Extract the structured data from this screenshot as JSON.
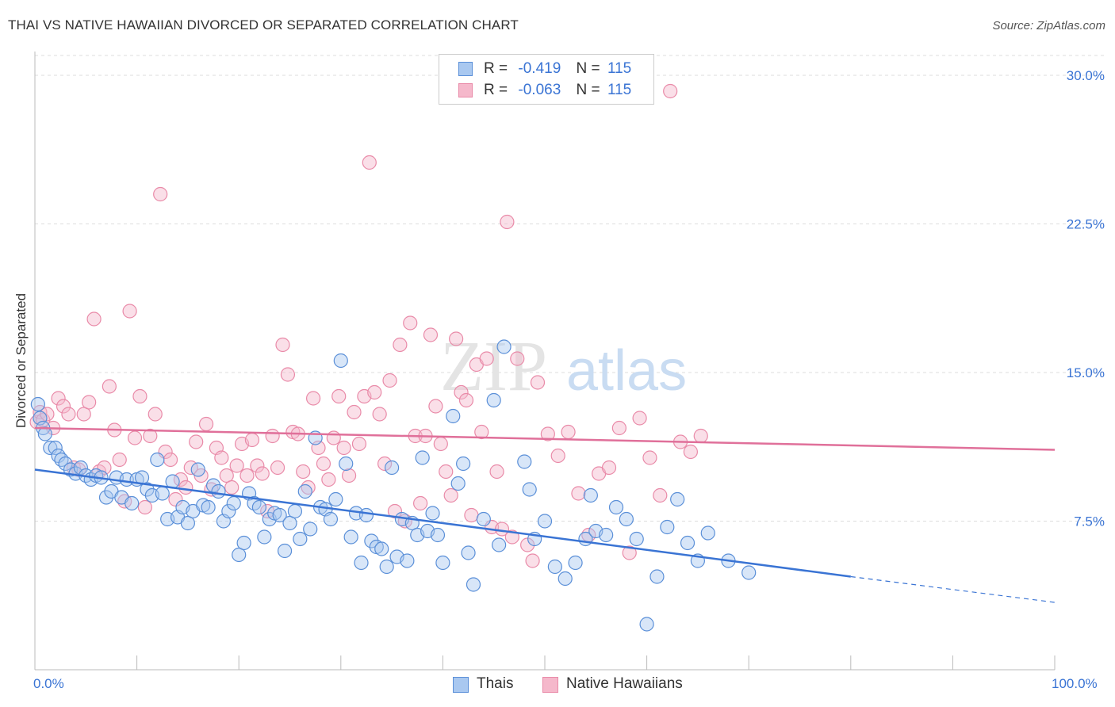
{
  "header": {
    "title": "THAI VS NATIVE HAWAIIAN DIVORCED OR SEPARATED CORRELATION CHART",
    "source": "Source: ZipAtlas.com"
  },
  "legend": {
    "rows": [
      {
        "r_label": "R =",
        "r_value": "-0.419",
        "n_label": "N =",
        "n_value": "115"
      },
      {
        "r_label": "R =",
        "r_value": "-0.063",
        "n_label": "N =",
        "n_value": "115"
      }
    ]
  },
  "bottom_legend": {
    "series1": "Thais",
    "series2": "Native Hawaiians"
  },
  "watermark": {
    "zip": "ZIP",
    "atlas": "atlas"
  },
  "colors": {
    "blue_fill": "#a9c8f0",
    "blue_stroke": "#5a8fd8",
    "blue_line": "#3a74d4",
    "pink_fill": "#f5b8cb",
    "pink_stroke": "#e98aa8",
    "pink_line": "#e0709a",
    "axis_text": "#3a74d4",
    "grid": "#dddddd"
  },
  "chart_data": {
    "type": "scatter",
    "title": "THAI VS NATIVE HAWAIIAN DIVORCED OR SEPARATED CORRELATION CHART",
    "xlabel": "",
    "ylabel": "Divorced or Separated",
    "xlim": [
      0,
      100
    ],
    "ylim": [
      0,
      31
    ],
    "x_tick_labels": [
      "0.0%",
      "100.0%"
    ],
    "y_ticks": [
      7.5,
      15.0,
      22.5,
      30.0
    ],
    "y_tick_labels": [
      "7.5%",
      "15.0%",
      "22.5%",
      "30.0%"
    ],
    "grid": true,
    "legend_position": "top-center",
    "series": [
      {
        "name": "Thais",
        "r": -0.419,
        "n": 115,
        "trend": {
          "x0": 0,
          "y0": 10.1,
          "x1": 80,
          "y1": 4.7,
          "dashed_to_x": 100,
          "dashed_to_y": 3.4
        },
        "points": [
          [
            0.3,
            13.4
          ],
          [
            0.5,
            12.7
          ],
          [
            0.8,
            12.2
          ],
          [
            1.0,
            11.9
          ],
          [
            1.5,
            11.2
          ],
          [
            2.0,
            11.2
          ],
          [
            2.3,
            10.8
          ],
          [
            2.6,
            10.6
          ],
          [
            3.0,
            10.4
          ],
          [
            3.5,
            10.1
          ],
          [
            4.0,
            9.9
          ],
          [
            4.5,
            10.2
          ],
          [
            5.0,
            9.8
          ],
          [
            5.5,
            9.6
          ],
          [
            6.0,
            9.8
          ],
          [
            6.5,
            9.7
          ],
          [
            7.0,
            8.7
          ],
          [
            7.5,
            9.0
          ],
          [
            8.0,
            9.7
          ],
          [
            8.5,
            8.7
          ],
          [
            9.0,
            9.6
          ],
          [
            9.5,
            8.4
          ],
          [
            10.0,
            9.6
          ],
          [
            10.5,
            9.7
          ],
          [
            11.0,
            9.1
          ],
          [
            11.5,
            8.8
          ],
          [
            12.0,
            10.6
          ],
          [
            12.5,
            8.9
          ],
          [
            13.0,
            7.6
          ],
          [
            13.5,
            9.5
          ],
          [
            14.0,
            7.7
          ],
          [
            14.5,
            8.2
          ],
          [
            15.0,
            7.4
          ],
          [
            15.5,
            8.0
          ],
          [
            16.0,
            10.1
          ],
          [
            16.5,
            8.3
          ],
          [
            17.0,
            8.2
          ],
          [
            17.5,
            9.3
          ],
          [
            18.0,
            9.0
          ],
          [
            18.5,
            7.5
          ],
          [
            19.0,
            8.0
          ],
          [
            19.5,
            8.4
          ],
          [
            20.0,
            5.8
          ],
          [
            20.5,
            6.4
          ],
          [
            21.0,
            8.9
          ],
          [
            21.5,
            8.4
          ],
          [
            22.0,
            8.2
          ],
          [
            22.5,
            6.7
          ],
          [
            23.0,
            7.6
          ],
          [
            23.5,
            7.9
          ],
          [
            24.0,
            7.8
          ],
          [
            24.5,
            6.0
          ],
          [
            25.0,
            7.4
          ],
          [
            25.5,
            8.0
          ],
          [
            26.0,
            6.6
          ],
          [
            26.5,
            9.0
          ],
          [
            27.0,
            7.1
          ],
          [
            27.5,
            11.7
          ],
          [
            28.0,
            8.2
          ],
          [
            28.5,
            8.1
          ],
          [
            29.0,
            7.6
          ],
          [
            29.5,
            8.6
          ],
          [
            30.0,
            15.6
          ],
          [
            30.5,
            10.4
          ],
          [
            31.0,
            6.7
          ],
          [
            31.5,
            7.9
          ],
          [
            32.0,
            5.4
          ],
          [
            32.5,
            7.8
          ],
          [
            33.0,
            6.5
          ],
          [
            33.5,
            6.2
          ],
          [
            34.0,
            6.1
          ],
          [
            34.5,
            5.2
          ],
          [
            35.0,
            10.2
          ],
          [
            35.5,
            5.7
          ],
          [
            36.0,
            7.6
          ],
          [
            36.5,
            5.5
          ],
          [
            37.0,
            7.4
          ],
          [
            37.5,
            6.8
          ],
          [
            38.0,
            10.7
          ],
          [
            38.5,
            7.0
          ],
          [
            39.0,
            7.9
          ],
          [
            39.5,
            6.8
          ],
          [
            40.0,
            5.4
          ],
          [
            41.0,
            12.8
          ],
          [
            41.5,
            9.4
          ],
          [
            42.0,
            10.4
          ],
          [
            42.5,
            5.9
          ],
          [
            43.0,
            4.3
          ],
          [
            44.0,
            7.6
          ],
          [
            45.0,
            13.6
          ],
          [
            45.5,
            6.3
          ],
          [
            46.0,
            16.3
          ],
          [
            48.0,
            10.5
          ],
          [
            48.5,
            9.1
          ],
          [
            49.0,
            6.6
          ],
          [
            50.0,
            7.5
          ],
          [
            51.0,
            5.2
          ],
          [
            52.0,
            4.6
          ],
          [
            53.0,
            5.4
          ],
          [
            54.0,
            6.6
          ],
          [
            54.5,
            8.8
          ],
          [
            55.0,
            7.0
          ],
          [
            56.0,
            6.8
          ],
          [
            57.0,
            8.2
          ],
          [
            58.0,
            7.6
          ],
          [
            59.0,
            6.6
          ],
          [
            60.0,
            2.3
          ],
          [
            61.0,
            4.7
          ],
          [
            62.0,
            7.2
          ],
          [
            63.0,
            8.6
          ],
          [
            64.0,
            6.4
          ],
          [
            65.0,
            5.5
          ],
          [
            66.0,
            6.9
          ],
          [
            68.0,
            5.5
          ],
          [
            70.0,
            4.9
          ]
        ]
      },
      {
        "name": "Native Hawaiians",
        "r": -0.063,
        "n": 115,
        "trend": {
          "x0": 0,
          "y0": 12.2,
          "x1": 100,
          "y1": 11.1
        },
        "points": [
          [
            0.2,
            12.5
          ],
          [
            0.5,
            13.0
          ],
          [
            0.8,
            12.6
          ],
          [
            1.2,
            12.9
          ],
          [
            1.8,
            12.2
          ],
          [
            2.3,
            13.7
          ],
          [
            2.8,
            13.3
          ],
          [
            3.3,
            12.9
          ],
          [
            3.8,
            10.2
          ],
          [
            4.3,
            10.1
          ],
          [
            4.8,
            12.9
          ],
          [
            5.3,
            13.5
          ],
          [
            5.8,
            17.7
          ],
          [
            6.3,
            10.0
          ],
          [
            6.8,
            10.2
          ],
          [
            7.3,
            14.3
          ],
          [
            7.8,
            12.1
          ],
          [
            8.3,
            10.6
          ],
          [
            8.8,
            8.5
          ],
          [
            9.3,
            18.1
          ],
          [
            9.8,
            11.7
          ],
          [
            10.3,
            13.8
          ],
          [
            10.8,
            8.2
          ],
          [
            11.3,
            11.8
          ],
          [
            11.8,
            12.9
          ],
          [
            12.3,
            24.0
          ],
          [
            12.8,
            11.0
          ],
          [
            13.3,
            10.6
          ],
          [
            13.8,
            8.6
          ],
          [
            14.3,
            9.6
          ],
          [
            14.8,
            9.2
          ],
          [
            15.3,
            10.2
          ],
          [
            15.8,
            11.5
          ],
          [
            16.3,
            9.8
          ],
          [
            16.8,
            12.4
          ],
          [
            17.3,
            9.1
          ],
          [
            17.8,
            11.2
          ],
          [
            18.3,
            10.7
          ],
          [
            18.8,
            9.8
          ],
          [
            19.3,
            9.2
          ],
          [
            19.8,
            10.3
          ],
          [
            20.3,
            11.4
          ],
          [
            20.8,
            9.8
          ],
          [
            21.3,
            11.6
          ],
          [
            21.8,
            10.3
          ],
          [
            22.3,
            9.9
          ],
          [
            22.8,
            8.0
          ],
          [
            23.3,
            11.8
          ],
          [
            23.8,
            10.2
          ],
          [
            24.3,
            16.4
          ],
          [
            24.8,
            14.9
          ],
          [
            25.3,
            12.0
          ],
          [
            25.8,
            11.9
          ],
          [
            26.3,
            10.0
          ],
          [
            26.8,
            9.2
          ],
          [
            27.3,
            13.7
          ],
          [
            27.8,
            11.2
          ],
          [
            28.3,
            10.4
          ],
          [
            28.8,
            9.6
          ],
          [
            29.3,
            11.7
          ],
          [
            29.8,
            13.8
          ],
          [
            30.3,
            11.2
          ],
          [
            30.8,
            9.8
          ],
          [
            31.3,
            13.0
          ],
          [
            31.8,
            11.4
          ],
          [
            32.3,
            13.8
          ],
          [
            32.8,
            25.6
          ],
          [
            33.3,
            14.0
          ],
          [
            33.8,
            12.9
          ],
          [
            34.3,
            10.4
          ],
          [
            34.8,
            14.6
          ],
          [
            35.3,
            8.0
          ],
          [
            35.8,
            16.4
          ],
          [
            36.3,
            7.5
          ],
          [
            36.8,
            17.5
          ],
          [
            37.3,
            11.8
          ],
          [
            37.8,
            8.4
          ],
          [
            38.3,
            11.8
          ],
          [
            38.8,
            16.9
          ],
          [
            39.3,
            13.3
          ],
          [
            39.8,
            11.4
          ],
          [
            40.3,
            10.0
          ],
          [
            40.8,
            8.8
          ],
          [
            41.3,
            16.7
          ],
          [
            41.8,
            14.0
          ],
          [
            42.3,
            13.6
          ],
          [
            42.8,
            7.8
          ],
          [
            43.3,
            15.4
          ],
          [
            43.8,
            12.0
          ],
          [
            44.3,
            15.7
          ],
          [
            44.8,
            7.2
          ],
          [
            45.3,
            10.0
          ],
          [
            45.8,
            7.1
          ],
          [
            46.3,
            22.6
          ],
          [
            46.8,
            6.7
          ],
          [
            47.3,
            15.7
          ],
          [
            48.3,
            6.3
          ],
          [
            48.8,
            5.5
          ],
          [
            49.3,
            14.5
          ],
          [
            50.3,
            11.9
          ],
          [
            51.3,
            10.8
          ],
          [
            52.3,
            12.0
          ],
          [
            53.3,
            8.9
          ],
          [
            54.3,
            6.8
          ],
          [
            55.3,
            9.9
          ],
          [
            56.3,
            10.2
          ],
          [
            57.3,
            12.2
          ],
          [
            58.3,
            5.9
          ],
          [
            59.3,
            12.7
          ],
          [
            60.3,
            10.7
          ],
          [
            61.3,
            8.8
          ],
          [
            62.3,
            29.2
          ],
          [
            63.3,
            11.5
          ],
          [
            64.3,
            11.0
          ],
          [
            65.3,
            11.8
          ]
        ]
      }
    ]
  }
}
